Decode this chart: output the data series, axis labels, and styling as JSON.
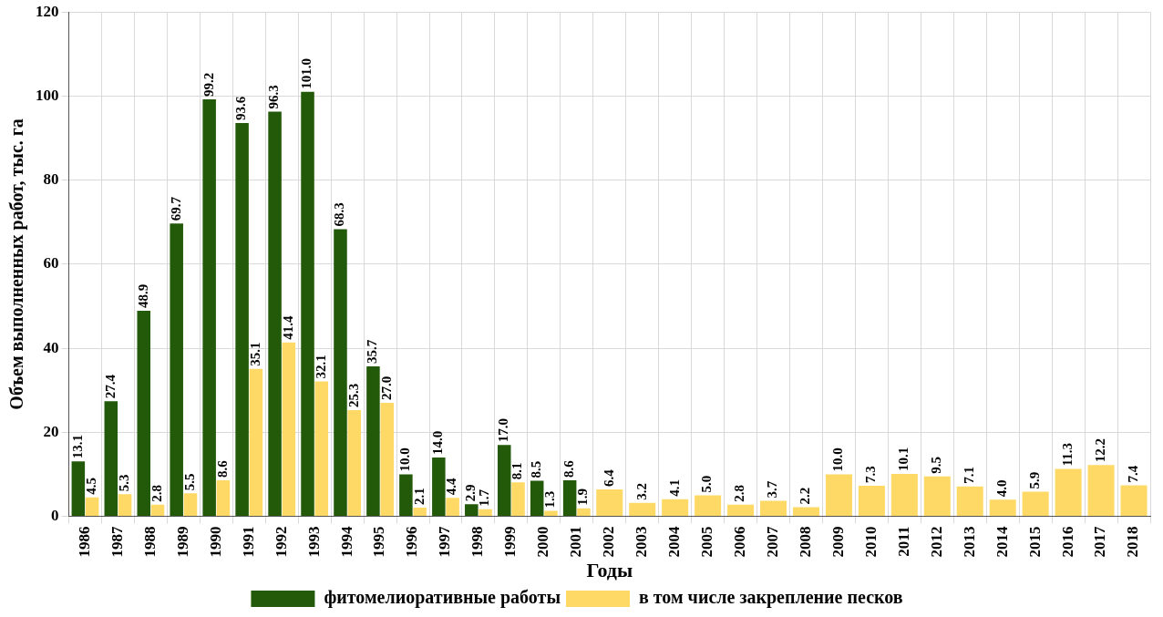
{
  "chart_data": {
    "type": "bar",
    "xlabel": "Годы",
    "ylabel": "Объем выполненных работ, тыс. га",
    "categories": [
      "1986",
      "1987",
      "1988",
      "1989",
      "1990",
      "1991",
      "1992",
      "1993",
      "1994",
      "1995",
      "1996",
      "1997",
      "1998",
      "1999",
      "2000",
      "2001",
      "2002",
      "2003",
      "2004",
      "2005",
      "2006",
      "2007",
      "2008",
      "2009",
      "2010",
      "2011",
      "2012",
      "2013",
      "2014",
      "2015",
      "2016",
      "2017",
      "2018"
    ],
    "series": [
      {
        "name": "фитомелиоративные работы",
        "color": "#235a0a",
        "values": [
          13.1,
          27.4,
          48.9,
          69.7,
          99.2,
          93.6,
          96.3,
          101.0,
          68.3,
          35.7,
          10.0,
          14.0,
          2.9,
          17.0,
          8.5,
          8.6,
          null,
          null,
          null,
          null,
          null,
          null,
          null,
          null,
          null,
          null,
          null,
          null,
          null,
          null,
          null,
          null,
          null
        ],
        "value_labels": [
          "13.1",
          "27.4",
          "48.9",
          "69.7",
          "99.2",
          "93.6",
          "96.3",
          "101.0",
          "68.3",
          "35.7",
          "10.0",
          "14.0",
          "2.9",
          "17.0",
          "8.5",
          "8.6",
          null,
          null,
          null,
          null,
          null,
          null,
          null,
          null,
          null,
          null,
          null,
          null,
          null,
          null,
          null,
          null,
          null
        ]
      },
      {
        "name": "в том числе закрепление песков",
        "color": "#ffd966",
        "values": [
          4.5,
          5.3,
          2.8,
          5.5,
          8.6,
          35.1,
          41.4,
          32.1,
          25.3,
          27.0,
          2.1,
          4.4,
          1.7,
          8.1,
          1.3,
          1.9,
          6.4,
          3.2,
          4.1,
          5.0,
          2.8,
          3.7,
          2.2,
          10.0,
          7.3,
          10.1,
          9.5,
          7.1,
          4.0,
          5.9,
          11.3,
          12.2,
          7.4
        ],
        "value_labels": [
          "4.5",
          "5.3",
          "2.8",
          "5.5",
          "8.6",
          "35.1",
          "41.4",
          "32.1",
          "25.3",
          "27.0",
          "2.1",
          "4.4",
          "1.7",
          "8.1",
          "1.3",
          "1.9",
          "6.4",
          "3.2",
          "4.1",
          "5.0",
          "2.8",
          "3.7",
          "2.2",
          "10.0",
          "7.3",
          "10.1",
          "9.5",
          "7.1",
          "4.0",
          "5.9",
          "11.3",
          "12.2",
          "7.4"
        ]
      }
    ],
    "ylim": [
      0,
      120
    ],
    "yticks": [
      0,
      20,
      40,
      60,
      80,
      100,
      120
    ],
    "grid": true,
    "legend": "bottom"
  }
}
